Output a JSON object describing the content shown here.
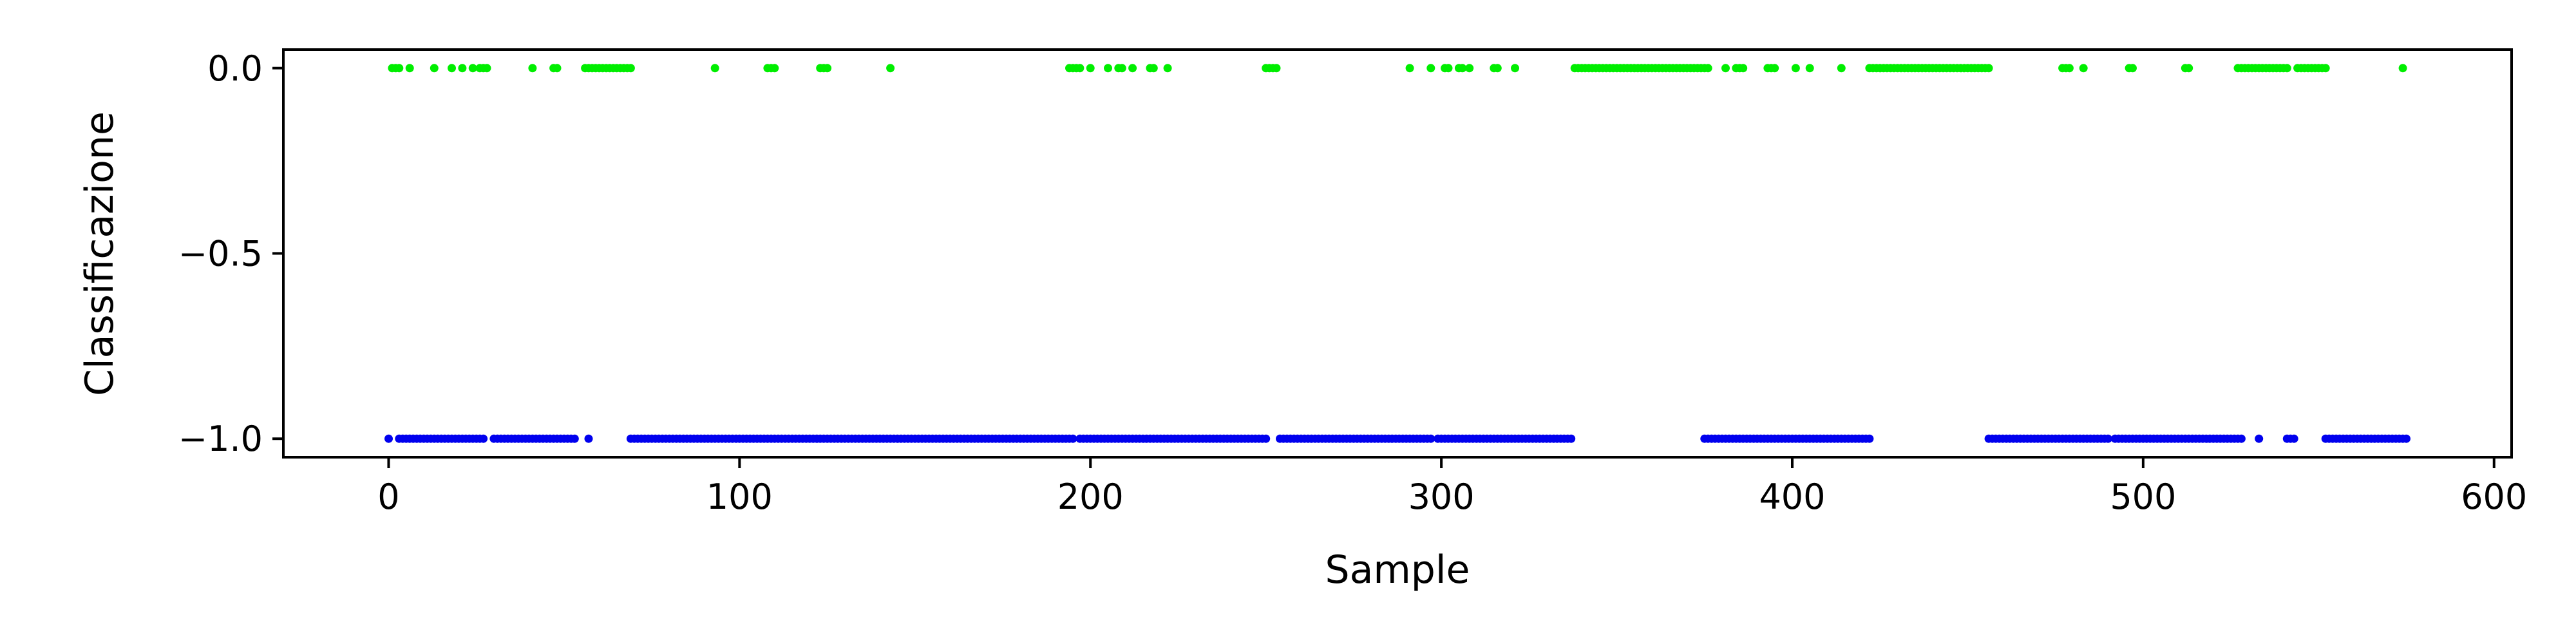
{
  "chart_data": {
    "type": "scatter",
    "title": "",
    "xlabel": "Sample",
    "ylabel": "Classificazione",
    "xlim": [
      -30,
      605
    ],
    "ylim": [
      -1.05,
      0.05
    ],
    "x_ticks": [
      0,
      100,
      200,
      300,
      400,
      500,
      600
    ],
    "y_ticks": [
      0.0,
      -0.5,
      -1.0
    ],
    "x_tick_labels": [
      "0",
      "100",
      "200",
      "300",
      "400",
      "500",
      "600"
    ],
    "y_tick_labels": [
      "0.0",
      "−0.5",
      "−1.0"
    ],
    "grid": false,
    "legend": "none",
    "series": [
      {
        "color": "#00ee00",
        "y": 0.0,
        "x_ranges": [
          [
            1,
            3
          ],
          [
            6,
            6
          ],
          [
            13,
            13
          ],
          [
            18,
            18
          ],
          [
            21,
            21
          ],
          [
            24,
            24
          ],
          [
            26,
            28
          ],
          [
            41,
            41
          ],
          [
            47,
            48
          ],
          [
            56,
            69
          ],
          [
            93,
            93
          ],
          [
            108,
            110
          ],
          [
            123,
            125
          ],
          [
            143,
            143
          ],
          [
            194,
            197
          ],
          [
            200,
            200
          ],
          [
            205,
            205
          ],
          [
            208,
            209
          ],
          [
            212,
            212
          ],
          [
            217,
            218
          ],
          [
            222,
            222
          ],
          [
            250,
            253
          ],
          [
            291,
            291
          ],
          [
            297,
            297
          ],
          [
            301,
            302
          ],
          [
            305,
            306
          ],
          [
            308,
            308
          ],
          [
            315,
            316
          ],
          [
            321,
            321
          ],
          [
            338,
            376
          ],
          [
            381,
            381
          ],
          [
            384,
            386
          ],
          [
            393,
            395
          ],
          [
            401,
            401
          ],
          [
            405,
            405
          ],
          [
            414,
            414
          ],
          [
            422,
            456
          ],
          [
            477,
            479
          ],
          [
            483,
            483
          ],
          [
            496,
            497
          ],
          [
            512,
            513
          ],
          [
            527,
            541
          ],
          [
            544,
            552
          ],
          [
            574,
            574
          ]
        ]
      },
      {
        "color": "#0000ee",
        "y": -1.0,
        "x_ranges": [
          [
            0,
            0
          ],
          [
            3,
            27
          ],
          [
            30,
            53
          ],
          [
            57,
            57
          ],
          [
            69,
            195
          ],
          [
            197,
            250
          ],
          [
            254,
            297
          ],
          [
            299,
            337
          ],
          [
            375,
            422
          ],
          [
            456,
            490
          ],
          [
            492,
            528
          ],
          [
            533,
            533
          ],
          [
            541,
            543
          ],
          [
            552,
            575
          ]
        ]
      }
    ]
  }
}
